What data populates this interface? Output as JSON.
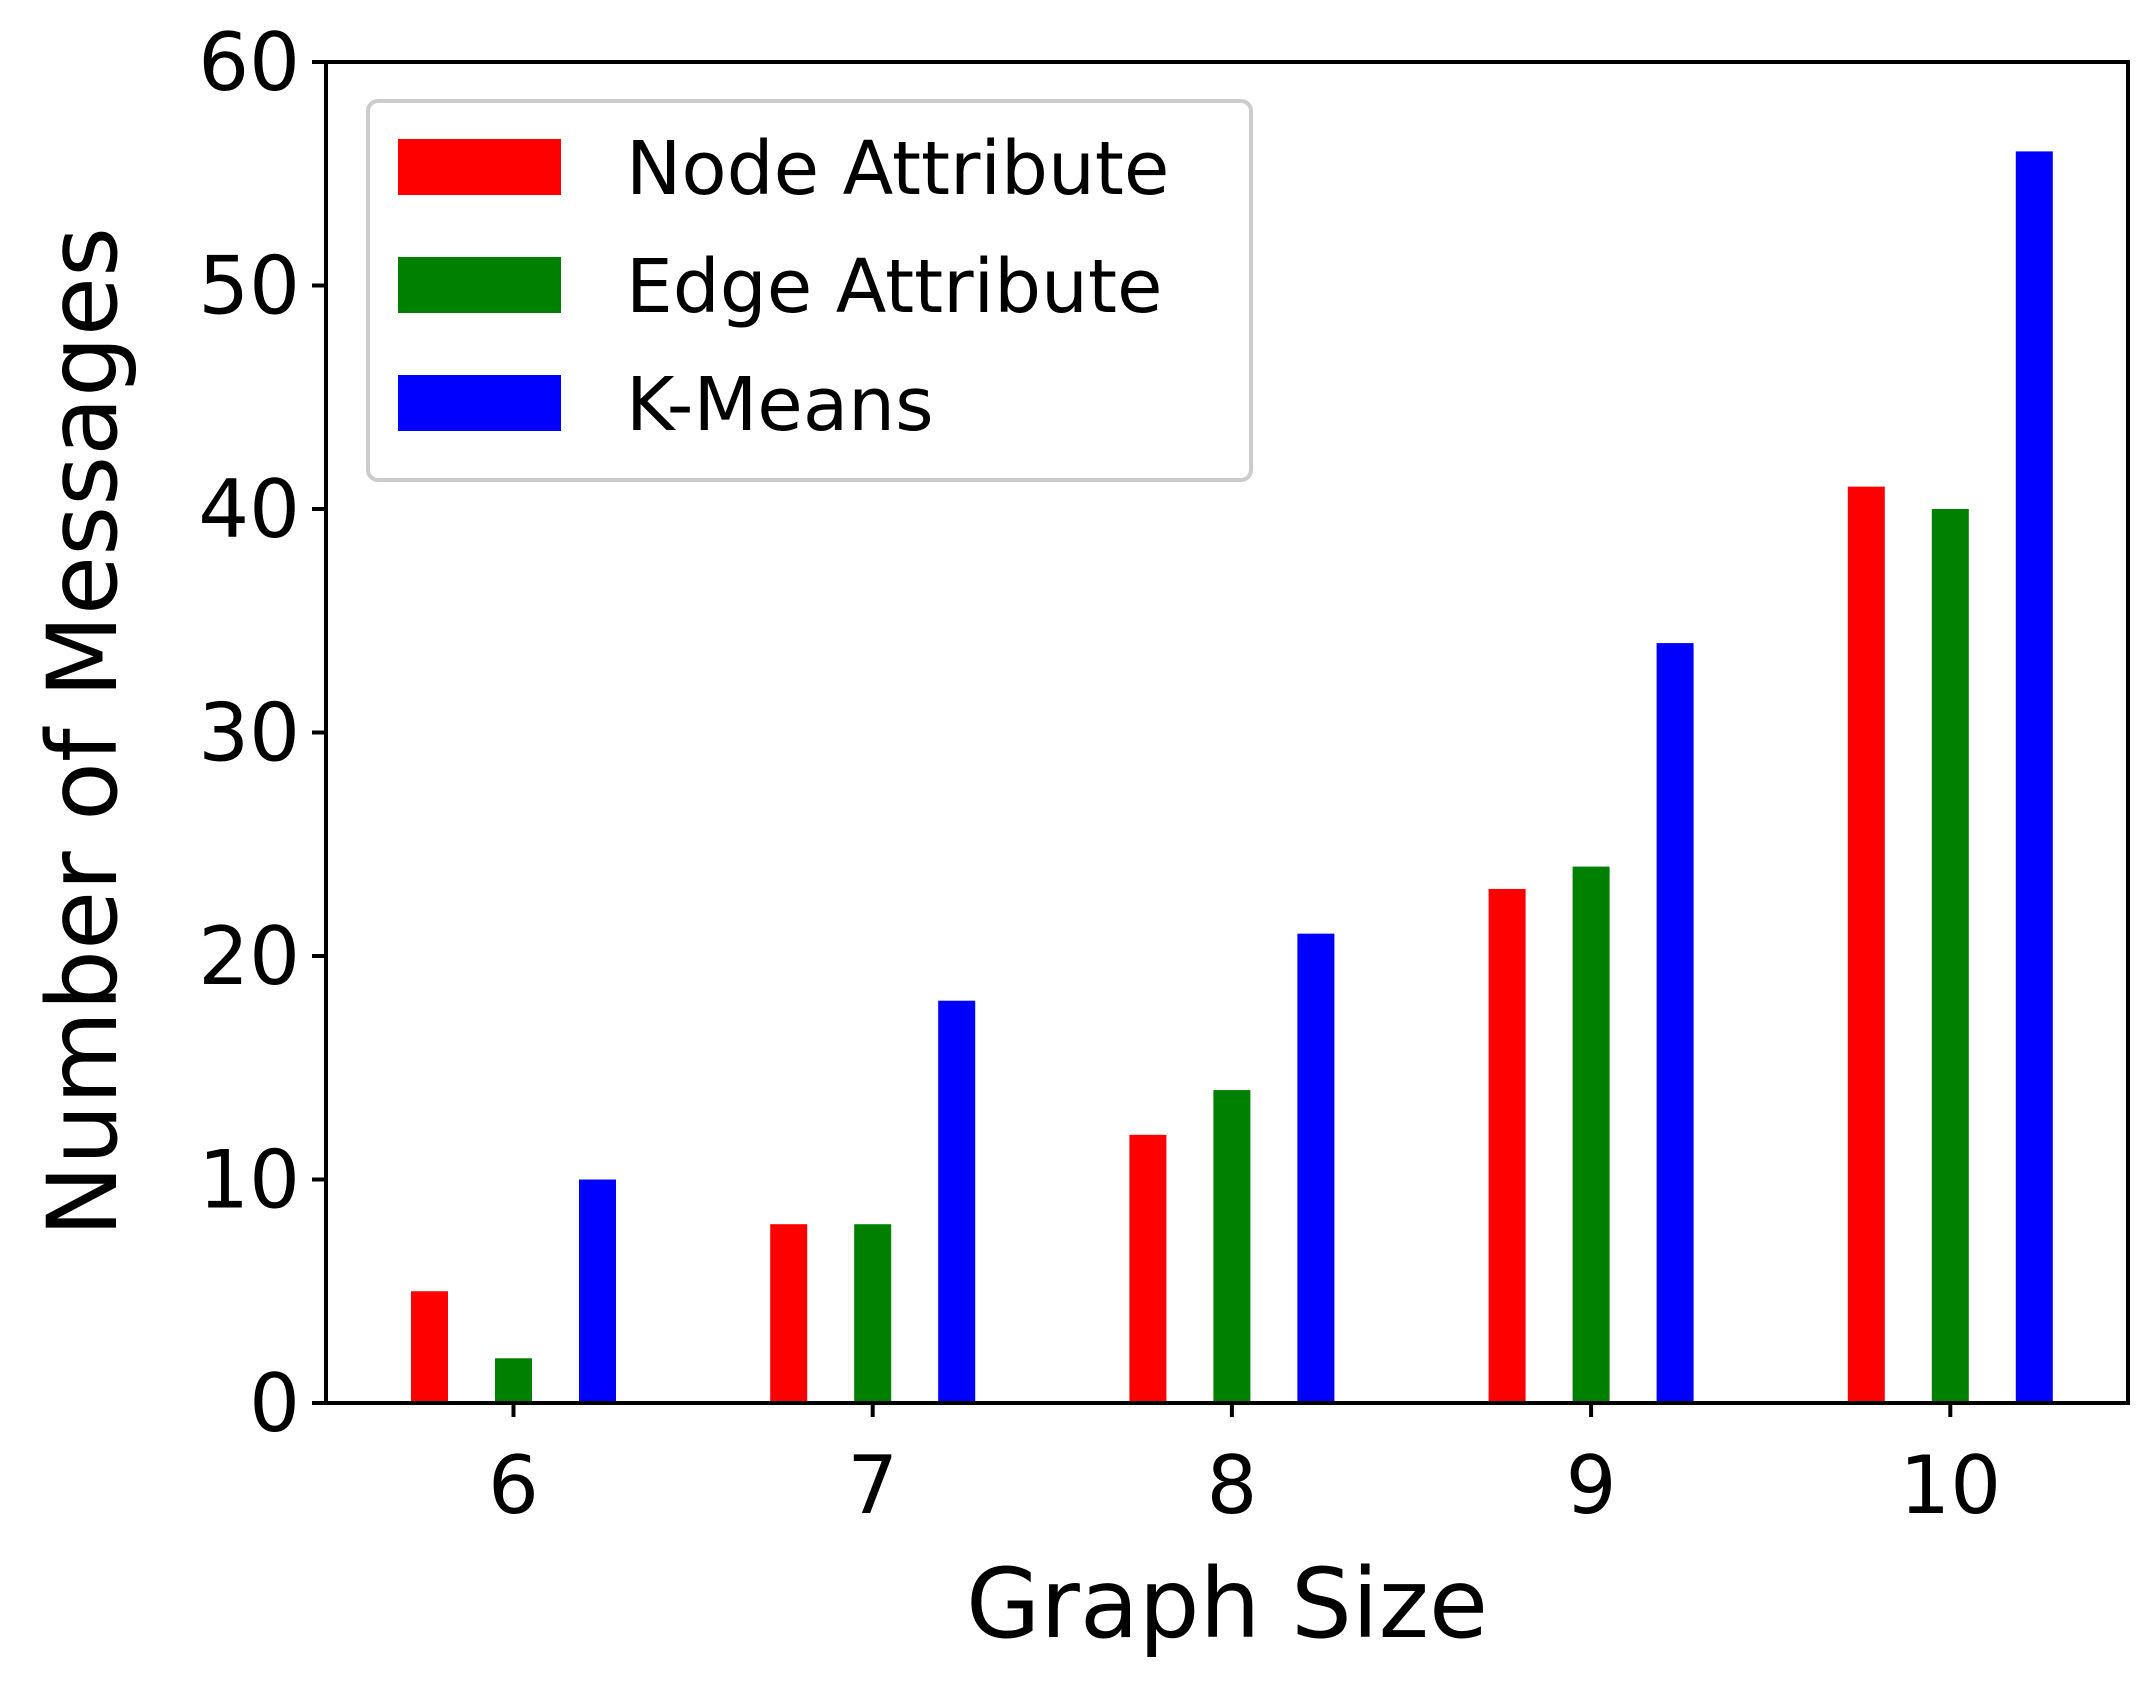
{
  "chart_data": {
    "type": "bar",
    "title": "",
    "xlabel": "Graph Size",
    "ylabel": "Number of Messages",
    "categories": [
      "6",
      "7",
      "8",
      "9",
      "10"
    ],
    "series": [
      {
        "name": "Node Attribute",
        "color": "#ff0000",
        "values": [
          5,
          8,
          12,
          23,
          41
        ]
      },
      {
        "name": "Edge Attribute",
        "color": "#008000",
        "values": [
          2,
          8,
          14,
          24,
          40
        ]
      },
      {
        "name": "K-Means",
        "color": "#0000ff",
        "values": [
          10,
          18,
          21,
          34,
          56
        ]
      }
    ],
    "ylim": [
      0,
      60
    ],
    "yticks": [
      0,
      10,
      20,
      30,
      40,
      50,
      60
    ],
    "grid": false,
    "legend_position": "top-left"
  }
}
